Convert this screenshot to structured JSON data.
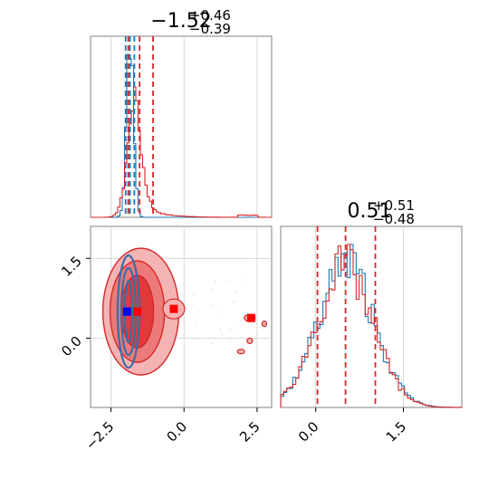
{
  "chart_data": [
    {
      "type": "histogram",
      "panel": "marginal-x",
      "title": {
        "value": "−1.52",
        "sup": "+0.46",
        "sub": "−0.39"
      },
      "xlim": [
        -3.2,
        3.0
      ],
      "grid": true,
      "series": [
        {
          "color": "#1f77b4",
          "peak": -1.85,
          "spread": 0.12
        },
        {
          "color": "#d62728",
          "peak": -1.7,
          "spread": 0.25,
          "tail_to": 2.5
        }
      ],
      "quantile_lines": [
        {
          "color": "#1f77b4",
          "x": [
            -2.0,
            -1.85,
            -1.7
          ]
        },
        {
          "color": "#d62728",
          "x": [
            -1.91,
            -1.52,
            -1.06
          ]
        }
      ]
    },
    {
      "type": "contour",
      "panel": "joint",
      "xlim": [
        -3.2,
        3.0
      ],
      "ylim": [
        -1.3,
        2.1
      ],
      "xticks": [
        "−2.5",
        "0.0",
        "2.5"
      ],
      "yticks": [
        "0.0",
        "1.5"
      ],
      "grid": true,
      "series": [
        {
          "color": "#d62728",
          "center": [
            -1.6,
            0.5
          ],
          "levels": 3
        },
        {
          "color": "#1f77b4",
          "center": [
            -1.9,
            0.5
          ],
          "levels": 3
        }
      ],
      "markers": [
        {
          "color": "#0000ff",
          "x": -1.95,
          "y": 0.5
        },
        {
          "color": "#ff0000",
          "x": -1.6,
          "y": 0.5
        },
        {
          "color": "#ff0000",
          "x": -0.35,
          "y": 0.55
        },
        {
          "color": "#ff0000",
          "x": 2.3,
          "y": 0.38
        }
      ]
    },
    {
      "type": "histogram",
      "panel": "marginal-y",
      "title": {
        "value": "0.51",
        "sup": "+0.51",
        "sub": "−0.48"
      },
      "xlim": [
        -0.6,
        2.5
      ],
      "xticks": [
        "0.0",
        "1.5"
      ],
      "grid": true,
      "series": [
        {
          "color": "#1f77b4",
          "peak": 0.52,
          "spread": 0.48
        },
        {
          "color": "#d62728",
          "peak": 0.5,
          "spread": 0.48
        }
      ],
      "quantile_lines": [
        {
          "color": "#d62728",
          "x": [
            0.03,
            0.51,
            1.02
          ]
        }
      ]
    }
  ]
}
